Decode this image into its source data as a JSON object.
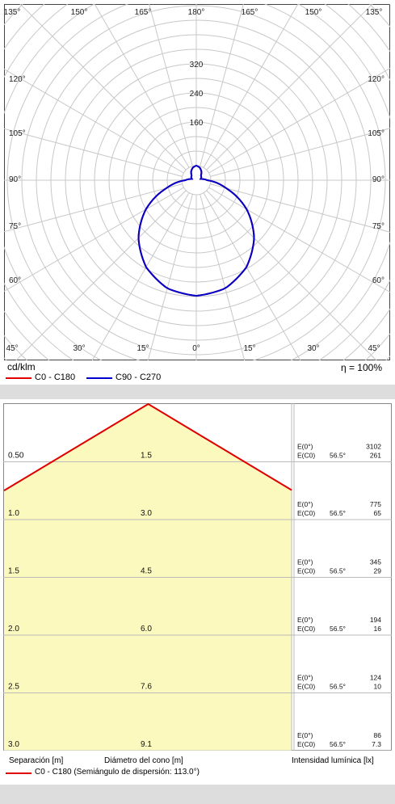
{
  "polar": {
    "unit_label": "cd/klm",
    "efficiency_label": "η = 100%",
    "radial_max": 400,
    "radial_ticks": [
      160,
      240,
      320
    ],
    "ring_step": 40,
    "top_angles": [
      "135°",
      "150°",
      "165°",
      "180°",
      "165°",
      "150°",
      "135°"
    ],
    "bottom_angles": [
      "45°",
      "30°",
      "15°",
      "0°",
      "15°",
      "30°",
      "45°"
    ],
    "left_angles": [
      "135°",
      "120°",
      "105°",
      "90°",
      "75°",
      "60°",
      "45°"
    ],
    "right_angles": [
      "135°",
      "120°",
      "105°",
      "90°",
      "75°",
      "60°",
      "45°"
    ]
  },
  "legend_top": {
    "items": [
      {
        "label": "C0 - C180",
        "color": "#e00000"
      },
      {
        "label": "C90 - C270",
        "color": "#0000cc"
      }
    ]
  },
  "chart_data": {
    "type": "polar-luminous-intensity",
    "unit": "cd/klm",
    "series": [
      {
        "name": "C0 - C180",
        "color": "#e00000",
        "angles_deg": [
          0,
          15,
          30,
          45,
          60,
          75,
          90,
          105,
          120,
          135,
          150,
          165,
          180
        ],
        "values": [
          318,
          308,
          276,
          225,
          160,
          85,
          30,
          12,
          16,
          18,
          28,
          36,
          40
        ]
      },
      {
        "name": "C90 - C270",
        "color": "#0000cc",
        "angles_deg": [
          0,
          15,
          30,
          45,
          60,
          75,
          90,
          105,
          120,
          135,
          150,
          165,
          180
        ],
        "values": [
          318,
          308,
          276,
          225,
          160,
          85,
          30,
          12,
          16,
          18,
          28,
          36,
          40
        ]
      }
    ]
  },
  "cone": {
    "rows": [
      {
        "separation": "0.50",
        "diameter": "1.5",
        "e_center_label": "E(0°)",
        "e_center": "3102",
        "e_edge_label": "E(C0)",
        "angle": "56.5°",
        "e_edge": "261"
      },
      {
        "separation": "1.0",
        "diameter": "3.0",
        "e_center_label": "E(0°)",
        "e_center": "775",
        "e_edge_label": "E(C0)",
        "angle": "56.5°",
        "e_edge": "65"
      },
      {
        "separation": "1.5",
        "diameter": "4.5",
        "e_center_label": "E(0°)",
        "e_center": "345",
        "e_edge_label": "E(C0)",
        "angle": "56.5°",
        "e_edge": "29"
      },
      {
        "separation": "2.0",
        "diameter": "6.0",
        "e_center_label": "E(0°)",
        "e_center": "194",
        "e_edge_label": "E(C0)",
        "angle": "56.5°",
        "e_edge": "16"
      },
      {
        "separation": "2.5",
        "diameter": "7.6",
        "e_center_label": "E(0°)",
        "e_center": "124",
        "e_edge_label": "E(C0)",
        "angle": "56.5°",
        "e_edge": "10"
      },
      {
        "separation": "3.0",
        "diameter": "9.1",
        "e_center_label": "E(0°)",
        "e_center": "86",
        "e_edge_label": "E(C0)",
        "angle": "56.5°",
        "e_edge": "7.3"
      }
    ],
    "col_separation_label": "Separación [m]",
    "col_diameter_label": "Diámetro del cono [m]",
    "col_intensity_label": "Intensidad lumínica [lx]",
    "legend_label": "C0 - C180 (Semiángulo de dispersión: 113.0°)",
    "legend_color": "#e00000",
    "fill_color": "#fcf9bf"
  }
}
